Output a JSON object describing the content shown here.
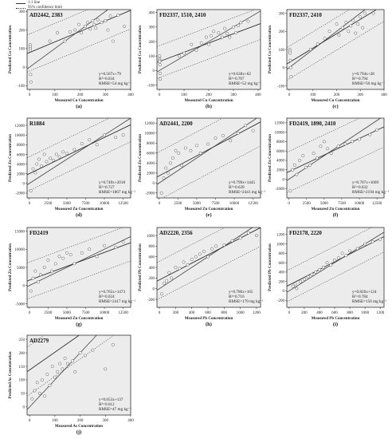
{
  "legend": {
    "line_label": "1:1 line",
    "ci_label": "95% confidence limit"
  },
  "style": {
    "plot_bg": "#ececec",
    "frame": "#333333",
    "mark": "#555555",
    "fill_point": "#ffffff"
  },
  "chart_data": [
    {
      "type": "scatter",
      "id": "AD2442, 2383",
      "letter": "(a)",
      "xlabel": "Measured Cu Concentration",
      "ylabel": "Predicted Cu Concentration",
      "xlim": [
        -10,
        400
      ],
      "ylim": [
        -120,
        310
      ],
      "xticks": [
        0,
        100,
        200,
        300,
        400
      ],
      "yticks": [
        -100,
        0,
        100,
        200,
        300
      ],
      "fit": {
        "slope": 0.567,
        "intercept": 79
      },
      "ci_offset": 100,
      "eq_text": "y=0.567x+79",
      "r2_text": "R²=0.634",
      "rmse_text": "RMSE=54 mg kg⁻¹",
      "points": [
        [
          2,
          120
        ],
        [
          2,
          110
        ],
        [
          3,
          100
        ],
        [
          3,
          90
        ],
        [
          4,
          -40
        ],
        [
          5,
          -80
        ],
        [
          80,
          140
        ],
        [
          110,
          185
        ],
        [
          140,
          140
        ],
        [
          160,
          190
        ],
        [
          180,
          200
        ],
        [
          195,
          230
        ],
        [
          205,
          185
        ],
        [
          220,
          220
        ],
        [
          230,
          240
        ],
        [
          240,
          205
        ],
        [
          250,
          250
        ],
        [
          255,
          230
        ],
        [
          262,
          210
        ],
        [
          270,
          255
        ],
        [
          285,
          240
        ],
        [
          300,
          250
        ],
        [
          310,
          200
        ],
        [
          320,
          275
        ],
        [
          350,
          280
        ],
        [
          330,
          140
        ],
        [
          375,
          220
        ]
      ]
    },
    {
      "type": "scatter",
      "id": "FD2337, 1510, 2410",
      "letter": "(b)",
      "xlabel": "Measured Cu Concentration",
      "ylabel": "Predicted Cu Concentration",
      "xlim": [
        -10,
        410
      ],
      "ylim": [
        -130,
        420
      ],
      "xticks": [
        0,
        100,
        200,
        300,
        400
      ],
      "yticks": [
        -100,
        0,
        100,
        200,
        300,
        400
      ],
      "fit": {
        "slope": 0.638,
        "intercept": 62
      },
      "ci_offset": 110,
      "eq_text": "y=0.638x+62",
      "r2_text": "R²=0.707",
      "rmse_text": "RMSE=52 mg kg⁻¹",
      "points": [
        [
          1,
          100
        ],
        [
          1,
          80
        ],
        [
          1,
          70
        ],
        [
          1,
          60
        ],
        [
          2,
          40
        ],
        [
          3,
          -20
        ],
        [
          3,
          -60
        ],
        [
          80,
          100
        ],
        [
          100,
          120
        ],
        [
          130,
          180
        ],
        [
          150,
          140
        ],
        [
          170,
          190
        ],
        [
          190,
          230
        ],
        [
          200,
          180
        ],
        [
          210,
          240
        ],
        [
          220,
          270
        ],
        [
          240,
          260
        ],
        [
          255,
          230
        ],
        [
          265,
          290
        ],
        [
          275,
          255
        ],
        [
          285,
          230
        ],
        [
          300,
          300
        ],
        [
          320,
          310
        ],
        [
          310,
          260
        ],
        [
          330,
          330
        ],
        [
          360,
          340
        ]
      ]
    },
    {
      "type": "scatter",
      "id": "FD2337, 2410",
      "letter": "(c)",
      "xlabel": "Measured Cu Concentration",
      "ylabel": "Predicted Cu Concentration",
      "xlim": [
        -10,
        400
      ],
      "ylim": [
        -120,
        320
      ],
      "xticks": [
        0,
        100,
        200,
        300,
        400
      ],
      "yticks": [
        -100,
        0,
        100,
        200,
        300
      ],
      "fit": {
        "slope": 0.794,
        "intercept": 28
      },
      "ci_offset": 90,
      "eq_text": "y=0.794x+28",
      "r2_text": "R²=0.794",
      "rmse_text": "RMSE=50 mg kg⁻¹",
      "points": [
        [
          2,
          100
        ],
        [
          3,
          90
        ],
        [
          4,
          80
        ],
        [
          5,
          40
        ],
        [
          6,
          0
        ],
        [
          8,
          -50
        ],
        [
          90,
          100
        ],
        [
          120,
          130
        ],
        [
          150,
          160
        ],
        [
          170,
          200
        ],
        [
          200,
          240
        ],
        [
          210,
          180
        ],
        [
          225,
          220
        ],
        [
          240,
          250
        ],
        [
          250,
          200
        ],
        [
          260,
          230
        ],
        [
          270,
          260
        ],
        [
          280,
          190
        ],
        [
          290,
          240
        ],
        [
          300,
          280
        ],
        [
          310,
          220
        ],
        [
          320,
          300
        ],
        [
          355,
          300
        ]
      ]
    },
    {
      "type": "scatter",
      "id": "R1884",
      "letter": "(d)",
      "xlabel": "Measured Zn Concentration",
      "ylabel": "Predicted Zn Concentration",
      "xlim": [
        -300,
        13500
      ],
      "ylim": [
        -3000,
        13500
      ],
      "xticks": [
        0,
        2500,
        5000,
        7500,
        10000,
        12500
      ],
      "yticks": [
        -2000,
        0,
        2000,
        4000,
        6000,
        8000,
        10000,
        12000
      ],
      "fit": {
        "slope": 0.749,
        "intercept": 2018
      },
      "ci_offset": 3500,
      "eq_text": "y=0.749x+2018",
      "r2_text": "R²=0.727",
      "rmse_text": "RMSE=1867 mg kg⁻¹",
      "points": [
        [
          200,
          -1500
        ],
        [
          500,
          3000
        ],
        [
          800,
          2200
        ],
        [
          1000,
          4000
        ],
        [
          1300,
          5000
        ],
        [
          1600,
          3600
        ],
        [
          2000,
          6000
        ],
        [
          2300,
          4500
        ],
        [
          2800,
          5200
        ],
        [
          3200,
          4800
        ],
        [
          3600,
          6000
        ],
        [
          4000,
          5500
        ],
        [
          4500,
          6500
        ],
        [
          5000,
          6200
        ],
        [
          6000,
          7000
        ],
        [
          7000,
          8200
        ],
        [
          8000,
          9000
        ],
        [
          9000,
          8000
        ],
        [
          10000,
          10000
        ],
        [
          11500,
          9500
        ],
        [
          12500,
          10000
        ]
      ]
    },
    {
      "type": "scatter",
      "id": "AD2441, 2200",
      "letter": "(e)",
      "xlabel": "Measured Zn Concentration",
      "ylabel": "Predicted Zn Concentration",
      "xlim": [
        -300,
        13500
      ],
      "ylim": [
        -3000,
        13000
      ],
      "xticks": [
        0,
        2500,
        5000,
        7500,
        10000,
        12500
      ],
      "yticks": [
        -2000,
        0,
        2000,
        4000,
        6000,
        8000,
        10000,
        12000
      ],
      "fit": {
        "slope": 0.799,
        "intercept": 1445
      },
      "ci_offset": 4800,
      "eq_text": "y=0.799x+1445",
      "r2_text": "R²=0.639",
      "rmse_text": "RMSE=2441 mg kg⁻¹",
      "points": [
        [
          300,
          -2000
        ],
        [
          600,
          1000
        ],
        [
          900,
          3000
        ],
        [
          1200,
          2000
        ],
        [
          1500,
          4000
        ],
        [
          1800,
          5000
        ],
        [
          2200,
          6500
        ],
        [
          2600,
          6000
        ],
        [
          3000,
          3500
        ],
        [
          3500,
          7000
        ],
        [
          4200,
          6500
        ],
        [
          5000,
          7500
        ],
        [
          5500,
          6000
        ],
        [
          6500,
          7800
        ],
        [
          7500,
          9000
        ],
        [
          8500,
          9500
        ],
        [
          9500,
          8500
        ],
        [
          10500,
          10000
        ],
        [
          11500,
          11500
        ],
        [
          12500,
          10500
        ]
      ]
    },
    {
      "type": "scatter",
      "id": "FD2419, 1890, 2410",
      "letter": "(f)",
      "xlabel": "Measured Zn Concentration",
      "ylabel": "Predicted Zn Concentration",
      "xlim": [
        -300,
        13500
      ],
      "ylim": [
        -4000,
        13000
      ],
      "xticks": [
        0,
        2500,
        5000,
        7500,
        10000,
        12500
      ],
      "yticks": [
        -2000,
        0,
        2000,
        4000,
        6000,
        8000,
        10000,
        12000
      ],
      "fit": {
        "slope": 0.707,
        "intercept": 1609
      },
      "ci_offset": 4300,
      "eq_text": "y=0.707x+1609",
      "r2_text": "R²=0.632",
      "rmse_text": "RMSE=2194 mg kg⁻¹",
      "points": [
        [
          200,
          -2500
        ],
        [
          500,
          2000
        ],
        [
          800,
          3000
        ],
        [
          1100,
          1000
        ],
        [
          1500,
          4000
        ],
        [
          2000,
          5000
        ],
        [
          2400,
          2500
        ],
        [
          3000,
          3000
        ],
        [
          3500,
          5500
        ],
        [
          4000,
          4500
        ],
        [
          4500,
          7000
        ],
        [
          5000,
          8000
        ],
        [
          5500,
          6500
        ],
        [
          6000,
          5500
        ],
        [
          7000,
          7000
        ],
        [
          8000,
          7500
        ],
        [
          9000,
          8000
        ],
        [
          10000,
          8500
        ],
        [
          11500,
          9500
        ],
        [
          12500,
          10500
        ]
      ]
    },
    {
      "type": "scatter",
      "id": "FD2419",
      "letter": "(g)",
      "xlabel": "Measured Zn Concentration",
      "ylabel": "Predicted Zn Concentration",
      "xlim": [
        -300,
        13500
      ],
      "ylim": [
        -6000,
        16000
      ],
      "xticks": [
        0,
        2500,
        5000,
        7500,
        10000,
        12500
      ],
      "yticks": [
        -5000,
        0,
        5000,
        10000,
        15000
      ],
      "fit": {
        "slope": 0.765,
        "intercept": 1473
      },
      "ci_offset": 5000,
      "eq_text": "y=0.765x+1473",
      "r2_text": "R²=0.624",
      "rmse_text": "RMSE=2417 mg kg⁻¹",
      "points": [
        [
          200,
          -1500
        ],
        [
          500,
          2000
        ],
        [
          800,
          4000
        ],
        [
          1200,
          1000
        ],
        [
          1500,
          3000
        ],
        [
          2000,
          5000
        ],
        [
          2500,
          7000
        ],
        [
          3000,
          4000
        ],
        [
          3500,
          6000
        ],
        [
          4000,
          8000
        ],
        [
          4500,
          7500
        ],
        [
          5000,
          9000
        ],
        [
          5500,
          8500
        ],
        [
          6000,
          6000
        ],
        [
          7000,
          9000
        ],
        [
          8000,
          10000
        ],
        [
          9000,
          8000
        ],
        [
          10000,
          11000
        ],
        [
          11500,
          10500
        ],
        [
          12500,
          12000
        ]
      ]
    },
    {
      "type": "scatter",
      "id": "AD2220, 2356",
      "letter": "(h)",
      "xlabel": "Measured Pb Concentration",
      "ylabel": "Predicted Pb Concentration",
      "xlim": [
        -30,
        1250
      ],
      "ylim": [
        -350,
        1150
      ],
      "xticks": [
        0,
        200,
        400,
        600,
        800,
        1000,
        1200
      ],
      "yticks": [
        -200,
        0,
        200,
        400,
        600,
        800,
        1000
      ],
      "fit": {
        "slope": 0.786,
        "intercept": 165
      },
      "ci_offset": 350,
      "eq_text": "y=0.786x+165",
      "r2_text": "R²=0.716",
      "rmse_text": "RMSE=179 mg kg⁻¹",
      "points": [
        [
          30,
          -100
        ],
        [
          60,
          100
        ],
        [
          90,
          150
        ],
        [
          120,
          300
        ],
        [
          150,
          200
        ],
        [
          200,
          400
        ],
        [
          250,
          380
        ],
        [
          300,
          500
        ],
        [
          350,
          450
        ],
        [
          400,
          550
        ],
        [
          450,
          600
        ],
        [
          500,
          650
        ],
        [
          550,
          700
        ],
        [
          600,
          600
        ],
        [
          650,
          750
        ],
        [
          700,
          800
        ],
        [
          800,
          820
        ],
        [
          900,
          900
        ],
        [
          1000,
          950
        ],
        [
          1100,
          1050
        ],
        [
          1200,
          1000
        ]
      ]
    },
    {
      "type": "scatter",
      "id": "FD2178, 2220",
      "letter": "(i)",
      "xlabel": "Measured Pb Concentration",
      "ylabel": "Predicted Pb Concentration",
      "xlim": [
        -30,
        1250
      ],
      "ylim": [
        -350,
        1350
      ],
      "xticks": [
        0,
        200,
        400,
        600,
        800,
        1000,
        1200
      ],
      "yticks": [
        -200,
        0,
        200,
        400,
        600,
        800,
        1000,
        1200
      ],
      "fit": {
        "slope": 0.826,
        "intercept": 124
      },
      "ci_offset": 330,
      "eq_text": "y=0.826x+124",
      "r2_text": "R²=0.784",
      "rmse_text": "RMSE=156 mg kg⁻¹",
      "points": [
        [
          50,
          100
        ],
        [
          80,
          150
        ],
        [
          100,
          50
        ],
        [
          150,
          200
        ],
        [
          200,
          250
        ],
        [
          250,
          300
        ],
        [
          300,
          350
        ],
        [
          350,
          400
        ],
        [
          400,
          450
        ],
        [
          450,
          500
        ],
        [
          500,
          600
        ],
        [
          550,
          550
        ],
        [
          600,
          650
        ],
        [
          650,
          700
        ],
        [
          700,
          800
        ],
        [
          750,
          750
        ],
        [
          800,
          850
        ],
        [
          900,
          900
        ],
        [
          1000,
          1000
        ],
        [
          1100,
          1050
        ],
        [
          1200,
          1100
        ]
      ]
    },
    {
      "type": "scatter",
      "id": "AD2279",
      "letter": "(j)",
      "xlabel": "Measured As Concentration",
      "ylabel": "Predicted As Concentration",
      "xlim": [
        -10,
        400
      ],
      "ylim": [
        -30,
        265
      ],
      "xticks": [
        0,
        100,
        200,
        300,
        400
      ],
      "yticks": [
        0,
        50,
        100,
        150,
        200,
        250
      ],
      "fit": {
        "slope": 0.653,
        "intercept": 137
      },
      "ci_offset": 90,
      "eq_text": "y=0.653x+137",
      "r2_text": "R²=0.612",
      "rmse_text": "RMSE=47 mg kg⁻¹",
      "points": [
        [
          10,
          30
        ],
        [
          20,
          60
        ],
        [
          30,
          90
        ],
        [
          40,
          50
        ],
        [
          50,
          100
        ],
        [
          60,
          40
        ],
        [
          70,
          120
        ],
        [
          80,
          80
        ],
        [
          90,
          150
        ],
        [
          100,
          110
        ],
        [
          110,
          130
        ],
        [
          120,
          160
        ],
        [
          130,
          140
        ],
        [
          140,
          180
        ],
        [
          150,
          160
        ],
        [
          170,
          170
        ],
        [
          180,
          130
        ],
        [
          200,
          200
        ],
        [
          220,
          190
        ],
        [
          250,
          210
        ],
        [
          300,
          140
        ],
        [
          330,
          230
        ]
      ]
    }
  ]
}
